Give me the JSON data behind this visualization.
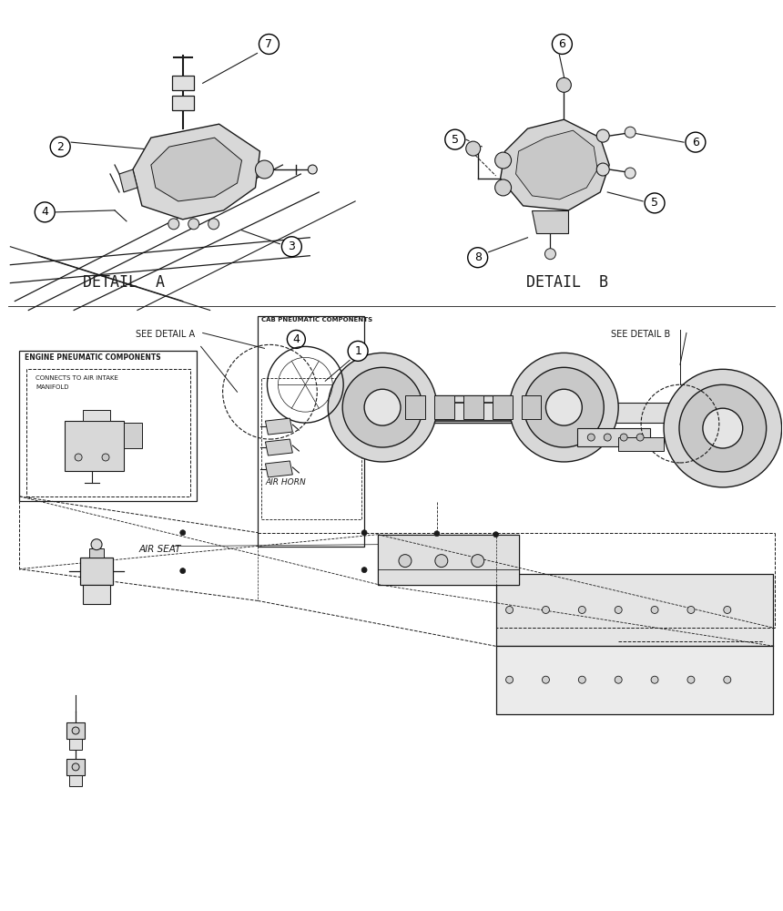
{
  "bg_color": "#ffffff",
  "line_color": "#1a1a1a",
  "detail_a_label": "DETAIL  A",
  "detail_b_label": "DETAIL  B",
  "see_detail_a": "SEE DETAIL A",
  "see_detail_b": "SEE DETAIL B",
  "engine_box_title": "ENGINE PNEUMATIC COMPONENTS",
  "engine_box_inner": [
    "CONNECTS TO AIR INTAKE",
    "MANIFOLD"
  ],
  "cab_box_title": "CAB PNEUMATIC COMPONENTS",
  "air_horn_label": "AIR HORN",
  "air_seat_label": "AIR SEAT"
}
